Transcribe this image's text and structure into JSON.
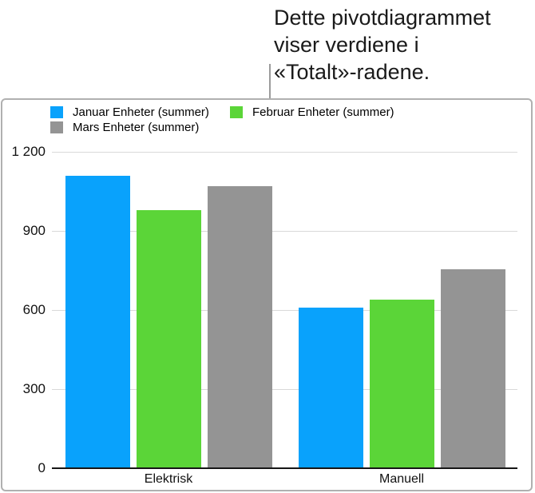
{
  "annotation": {
    "lines": [
      "Dette pivotdiagrammet",
      "viser verdiene i",
      "«Totalt»-radene."
    ]
  },
  "chart_data": {
    "type": "bar",
    "title": "",
    "categories": [
      "Elektrisk",
      "Manuell"
    ],
    "series": [
      {
        "name": "Januar Enheter (summer)",
        "color": "#09a2fc",
        "values": [
          1110,
          610
        ]
      },
      {
        "name": "Februar Enheter (summer)",
        "color": "#5bd538",
        "values": [
          980,
          640
        ]
      },
      {
        "name": "Mars Enheter (summer)",
        "color": "#949494",
        "values": [
          1070,
          755
        ]
      }
    ],
    "ylim": [
      0,
      1200
    ],
    "yticks": [
      0,
      300,
      600,
      900,
      1200
    ],
    "ytick_labels": [
      "0",
      "300",
      "600",
      "900",
      "1 200"
    ],
    "xlabel": "",
    "ylabel": "",
    "grid": true,
    "legend_position": "top-left"
  },
  "colors": {
    "card_border": "#b0b0b0",
    "gridline": "#d9d9d9",
    "axis": "#161616",
    "text": "#111111",
    "callout_line": "#9b9b9b",
    "background": "#ffffff"
  }
}
